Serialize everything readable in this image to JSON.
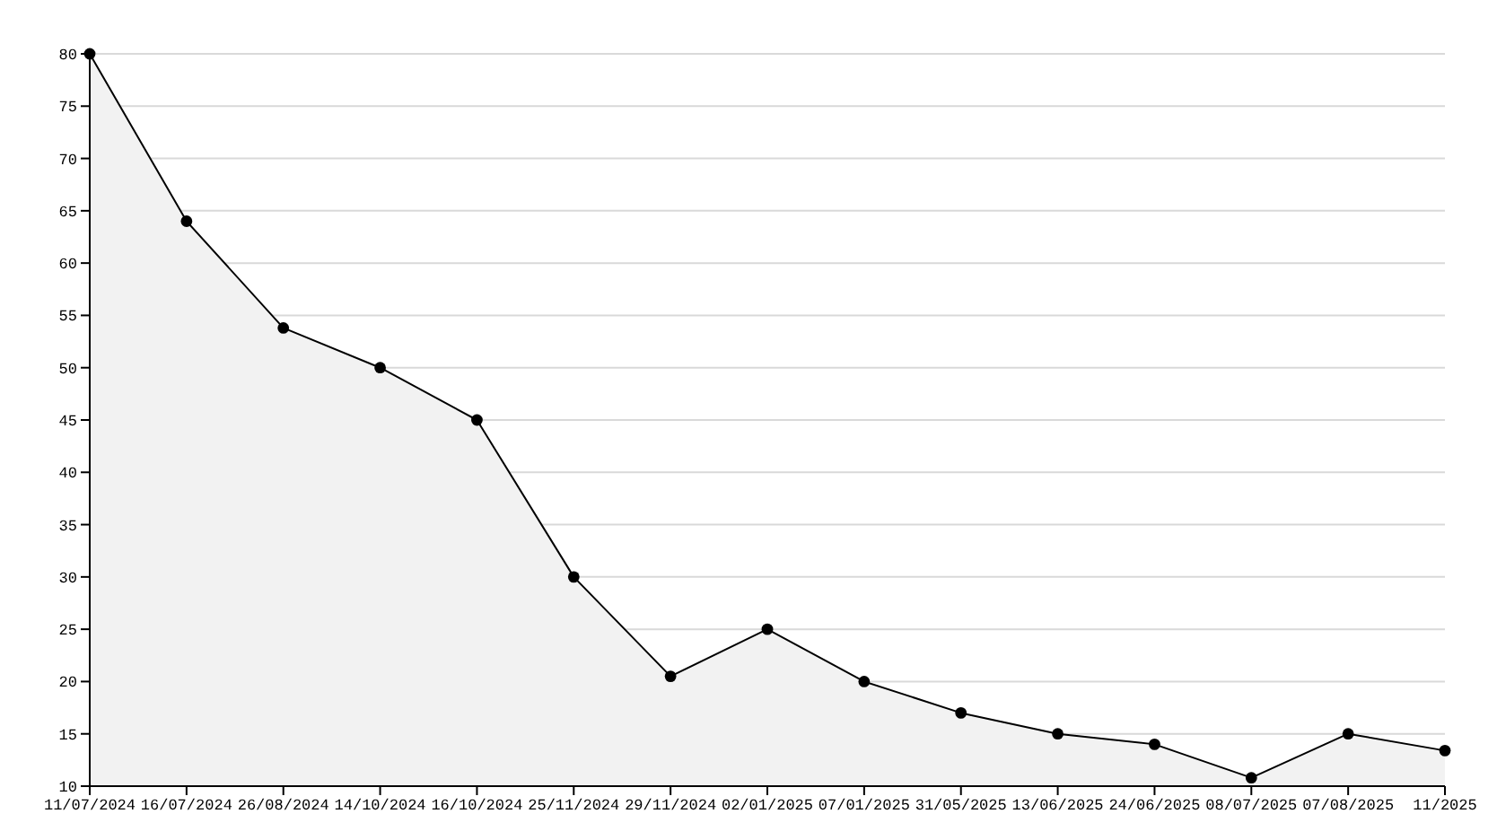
{
  "chart_data": {
    "type": "area",
    "categories": [
      "11/07/2024",
      "16/07/2024",
      "26/08/2024",
      "14/10/2024",
      "16/10/2024",
      "25/11/2024",
      "29/11/2024",
      "02/01/2025",
      "07/01/2025",
      "31/05/2025",
      "13/06/2025",
      "24/06/2025",
      "08/07/2025",
      "07/08/2025",
      "11/2025"
    ],
    "series": [
      {
        "color": "#000000",
        "values": [
          80,
          64,
          53.8,
          50,
          45,
          30,
          20.5,
          25,
          20,
          17,
          15,
          14,
          10.8,
          15,
          13.4
        ]
      }
    ],
    "ylim": [
      10,
      80
    ],
    "yticks": [
      10,
      15,
      20,
      25,
      30,
      35,
      40,
      45,
      50,
      55,
      60,
      65,
      70,
      75,
      80
    ],
    "grid": "y",
    "marker": "circle",
    "line_style": "solid"
  }
}
